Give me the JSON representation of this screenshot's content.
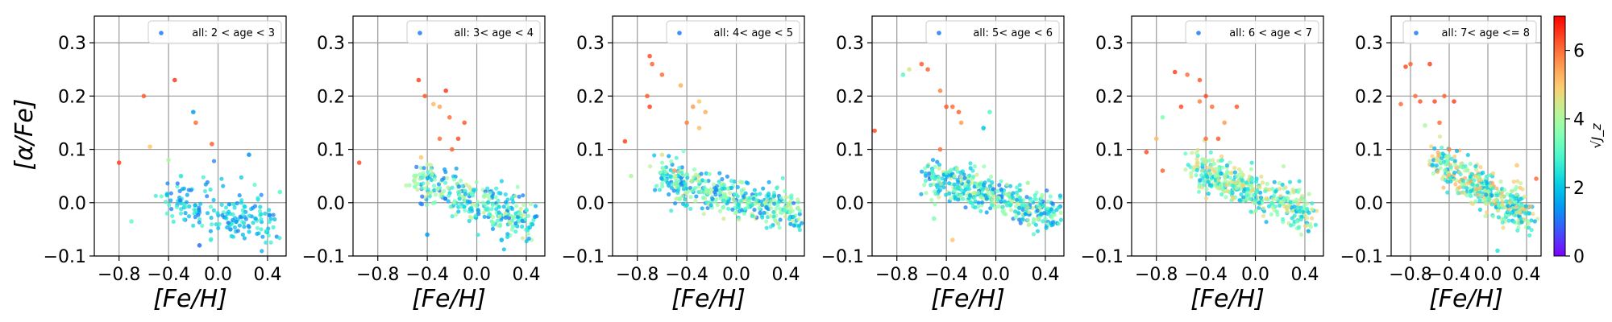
{
  "figure": {
    "ylabel": "[α/Fe]",
    "xlabel": "[Fe/H]",
    "colorbar": {
      "label": "√J_z",
      "range": [
        0,
        7
      ],
      "ticks": [
        "0",
        "2",
        "4",
        "6"
      ],
      "colormap": "rainbow"
    }
  },
  "chart_data": [
    {
      "type": "scatter",
      "legend": "all: 2 < age < 3",
      "xlim": [
        -1.0,
        0.55
      ],
      "ylim": [
        -0.1,
        0.35
      ],
      "xticks": [
        "−0.8",
        "−0.4",
        "0.0",
        "0.4"
      ],
      "yticks": [
        "−0.1",
        "0.0",
        "0.1",
        "0.2",
        "0.3"
      ],
      "grid": true,
      "legend_position": "top-right",
      "marker_color": "#3f8ff5",
      "points": [
        [
          -0.35,
          0.23,
          6.5
        ],
        [
          -0.6,
          0.2,
          6.2
        ],
        [
          -0.2,
          0.17,
          1.5
        ],
        [
          -0.18,
          0.15,
          6.0
        ],
        [
          -0.8,
          0.075,
          6.4
        ],
        [
          -0.55,
          0.105,
          5.0
        ],
        [
          -0.05,
          0.11,
          6.2
        ],
        [
          0.25,
          0.09,
          1.4
        ],
        [
          -0.4,
          0.08,
          4.0
        ],
        [
          -0.7,
          -0.035,
          3.2
        ],
        [
          -0.15,
          -0.08,
          1.0
        ],
        [
          0.5,
          0.02,
          3.0
        ],
        [
          -0.3,
          0.05,
          2.5
        ],
        [
          0.1,
          -0.05,
          1.5
        ]
      ],
      "cloud": {
        "x_range": [
          -0.45,
          0.45
        ],
        "y_center": -0.015,
        "y_spread": 0.04,
        "slope": -0.05,
        "count": 180,
        "color_range": [
          1,
          3
        ]
      }
    },
    {
      "type": "scatter",
      "legend": "all: 3< age < 4",
      "xlim": [
        -1.0,
        0.55
      ],
      "ylim": [
        -0.1,
        0.35
      ],
      "xticks": [
        "−0.8",
        "−0.4",
        "0.0",
        "0.4"
      ],
      "yticks": [
        "−0.1",
        "0.0",
        "0.1",
        "0.2",
        "0.3"
      ],
      "grid": true,
      "legend_position": "top-right",
      "marker_color": "#3f8ff5",
      "points": [
        [
          -0.47,
          0.23,
          6.4
        ],
        [
          -0.42,
          0.2,
          6.2
        ],
        [
          -0.25,
          0.21,
          6.5
        ],
        [
          -0.3,
          0.18,
          5.4
        ],
        [
          -0.35,
          0.185,
          5.2
        ],
        [
          -0.22,
          0.16,
          6.0
        ],
        [
          -0.1,
          0.15,
          6.2
        ],
        [
          -0.15,
          0.12,
          6.3
        ],
        [
          -0.3,
          0.12,
          6.0
        ],
        [
          -0.2,
          0.1,
          6.1
        ],
        [
          -0.95,
          0.075,
          6.3
        ],
        [
          -0.45,
          0.085,
          5.0
        ],
        [
          -0.4,
          -0.06,
          1.5
        ],
        [
          0.2,
          -0.07,
          1.8
        ],
        [
          -0.5,
          0.03,
          3.5
        ]
      ],
      "cloud": {
        "x_range": [
          -0.5,
          0.45
        ],
        "y_center": 0.0,
        "y_spread": 0.035,
        "slope": -0.08,
        "count": 320,
        "color_range": [
          1,
          4.5
        ]
      }
    },
    {
      "type": "scatter",
      "legend": "all: 4< age < 5",
      "xlim": [
        -1.0,
        0.55
      ],
      "ylim": [
        -0.1,
        0.35
      ],
      "xticks": [
        "−0.8",
        "−0.4",
        "0.0",
        "0.4"
      ],
      "yticks": [
        "−0.1",
        "0.0",
        "0.1",
        "0.2",
        "0.3"
      ],
      "grid": true,
      "legend_position": "top-right",
      "marker_color": "#3f8ff5",
      "points": [
        [
          -0.7,
          0.275,
          6.3
        ],
        [
          -0.68,
          0.26,
          6.1
        ],
        [
          -0.6,
          0.24,
          6.0
        ],
        [
          -0.72,
          0.2,
          6.2
        ],
        [
          -0.7,
          0.18,
          6.4
        ],
        [
          -0.45,
          0.22,
          5.3
        ],
        [
          -0.3,
          0.19,
          5.0
        ],
        [
          -0.35,
          0.18,
          5.5
        ],
        [
          -0.25,
          0.17,
          5.3
        ],
        [
          -0.4,
          0.15,
          5.8
        ],
        [
          -0.3,
          0.14,
          5.1
        ],
        [
          -0.9,
          0.115,
          6.4
        ],
        [
          -0.6,
          0.09,
          4.5
        ],
        [
          -0.85,
          0.05,
          4.0
        ],
        [
          -0.5,
          0.06,
          5.5
        ]
      ],
      "cloud": {
        "x_range": [
          -0.6,
          0.5
        ],
        "y_center": 0.01,
        "y_spread": 0.03,
        "slope": -0.06,
        "count": 420,
        "color_range": [
          1,
          4.5
        ]
      }
    },
    {
      "type": "scatter",
      "legend": "all: 5< age < 6",
      "xlim": [
        -1.0,
        0.55
      ],
      "ylim": [
        -0.1,
        0.35
      ],
      "xticks": [
        "−0.8",
        "−0.4",
        "0.0",
        "0.4"
      ],
      "yticks": [
        "−0.1",
        "0.0",
        "0.1",
        "0.2",
        "0.3"
      ],
      "grid": true,
      "legend_position": "top-right",
      "marker_color": "#3f8ff5",
      "points": [
        [
          -0.75,
          0.24,
          3.0
        ],
        [
          -0.6,
          0.26,
          6.2
        ],
        [
          -0.55,
          0.25,
          6.1
        ],
        [
          -0.7,
          0.25,
          4.5
        ],
        [
          -0.45,
          0.21,
          5.8
        ],
        [
          -0.4,
          0.18,
          6.2
        ],
        [
          -0.35,
          0.18,
          6.0
        ],
        [
          -0.3,
          0.17,
          6.1
        ],
        [
          -0.28,
          0.15,
          5.5
        ],
        [
          -0.1,
          0.14,
          2.0
        ],
        [
          -0.05,
          0.17,
          3.0
        ],
        [
          -0.98,
          0.135,
          6.3
        ],
        [
          -0.45,
          0.1,
          6.0
        ],
        [
          -0.5,
          -0.03,
          3.5
        ],
        [
          -0.35,
          -0.07,
          5.0
        ]
      ],
      "cloud": {
        "x_range": [
          -0.55,
          0.5
        ],
        "y_center": 0.01,
        "y_spread": 0.03,
        "slope": -0.07,
        "count": 430,
        "color_range": [
          1,
          4.5
        ]
      }
    },
    {
      "type": "scatter",
      "legend": "all: 6 < age < 7",
      "xlim": [
        -1.0,
        0.55
      ],
      "ylim": [
        -0.1,
        0.35
      ],
      "xticks": [
        "−0.8",
        "−0.4",
        "0.0",
        "0.4"
      ],
      "yticks": [
        "−0.1",
        "0.0",
        "0.1",
        "0.2",
        "0.3"
      ],
      "grid": true,
      "legend_position": "top-right",
      "marker_color": "#3f8ff5",
      "points": [
        [
          -0.65,
          0.245,
          6.4
        ],
        [
          -0.55,
          0.24,
          6.0
        ],
        [
          -0.45,
          0.23,
          6.2
        ],
        [
          -0.4,
          0.2,
          6.3
        ],
        [
          -0.6,
          0.18,
          6.3
        ],
        [
          -0.45,
          0.19,
          5.8
        ],
        [
          -0.35,
          0.18,
          6.0
        ],
        [
          -0.15,
          0.18,
          6.2
        ],
        [
          -0.75,
          0.16,
          3.5
        ],
        [
          -0.25,
          0.15,
          5.5
        ],
        [
          -0.4,
          0.12,
          6.0
        ],
        [
          -0.3,
          0.12,
          6.2
        ],
        [
          -0.88,
          0.095,
          6.3
        ],
        [
          -0.8,
          0.12,
          5.2
        ],
        [
          -0.75,
          0.06,
          6.1
        ]
      ],
      "cloud": {
        "x_range": [
          -0.5,
          0.45
        ],
        "y_center": 0.02,
        "y_spread": 0.03,
        "slope": -0.09,
        "count": 420,
        "color_range": [
          1.5,
          5
        ]
      }
    },
    {
      "type": "scatter",
      "legend": "all: 7< age <= 8",
      "xlim": [
        -1.0,
        0.55
      ],
      "ylim": [
        -0.1,
        0.35
      ],
      "xticks": [
        "−0.8",
        "−0.4",
        "0.0",
        "0.4"
      ],
      "yticks": [
        "−0.1",
        "0.0",
        "0.1",
        "0.2",
        "0.3"
      ],
      "grid": true,
      "legend_position": "top-right",
      "marker_color": "#3f8ff5",
      "points": [
        [
          -0.85,
          0.255,
          6.3
        ],
        [
          -0.8,
          0.26,
          6.1
        ],
        [
          -0.6,
          0.26,
          6.4
        ],
        [
          -0.75,
          0.2,
          6.0
        ],
        [
          -0.7,
          0.19,
          6.2
        ],
        [
          -0.55,
          0.19,
          6.3
        ],
        [
          -0.45,
          0.2,
          6.1
        ],
        [
          -0.35,
          0.19,
          6.4
        ],
        [
          -0.9,
          0.185,
          6.0
        ],
        [
          -0.5,
          0.15,
          6.0
        ],
        [
          -0.65,
          0.145,
          4.0
        ],
        [
          -0.4,
          0.1,
          5.8
        ],
        [
          0.1,
          -0.09,
          2.5
        ],
        [
          0.5,
          0.045,
          6.0
        ],
        [
          0.3,
          0.07,
          5.0
        ]
      ],
      "cloud": {
        "x_range": [
          -0.55,
          0.45
        ],
        "y_center": 0.02,
        "y_spread": 0.03,
        "slope": -0.1,
        "count": 420,
        "color_range": [
          1.5,
          5.5
        ]
      }
    }
  ]
}
